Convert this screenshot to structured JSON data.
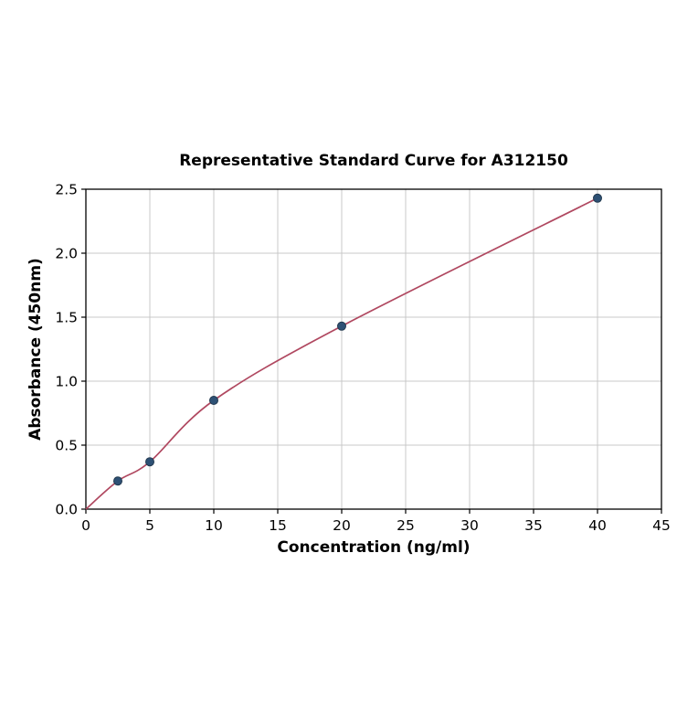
{
  "chart_data": {
    "type": "scatter",
    "title": "Representative Standard Curve for A312150",
    "xlabel": "Concentration (ng/ml)",
    "ylabel": "Absorbance (450nm)",
    "xlim": [
      0,
      45
    ],
    "ylim": [
      0,
      2.5
    ],
    "grid": true,
    "legend": "none",
    "xticks": {
      "values": [
        0,
        5,
        10,
        15,
        20,
        25,
        30,
        35,
        40,
        45
      ],
      "labels": [
        "0",
        "5",
        "10",
        "15",
        "20",
        "25",
        "30",
        "35",
        "40",
        "45"
      ]
    },
    "yticks": {
      "values": [
        0,
        0.5,
        1.0,
        1.5,
        2.0,
        2.5
      ],
      "labels": [
        "0.0",
        "0.5",
        "1.0",
        "1.5",
        "2.0",
        "2.5"
      ]
    },
    "points": {
      "x": [
        2.5,
        5,
        10,
        20,
        40
      ],
      "y": [
        0.22,
        0.37,
        0.85,
        1.43,
        2.43
      ]
    },
    "fit_curve": {
      "start": [
        0,
        0.0
      ],
      "ends_at_last_point": true
    },
    "colors": {
      "point": "#2e5175",
      "curve": "#b04860",
      "grid": "#c9c9c9",
      "axis": "#000000",
      "background": "#ffffff"
    }
  }
}
